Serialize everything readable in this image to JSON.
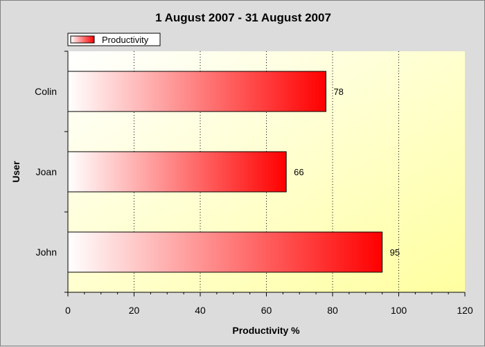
{
  "chart_data": {
    "type": "bar",
    "orientation": "horizontal",
    "title": "1 August 2007 - 31 August 2007",
    "xlabel": "Productivity %",
    "ylabel": "User",
    "categories": [
      "Colin",
      "Joan",
      "John"
    ],
    "series": [
      {
        "name": "Productivity",
        "values": [
          78,
          66,
          95
        ]
      }
    ],
    "xlim": [
      0,
      120
    ],
    "x_ticks": [
      0,
      20,
      40,
      60,
      80,
      100,
      120
    ],
    "x_tick_labels": [
      "0",
      "20",
      "40",
      "60",
      "80",
      "100",
      "120"
    ],
    "grid": "vertical dotted",
    "legend_position": "top-left",
    "data_labels": [
      "78",
      "66",
      "95"
    ],
    "colors": {
      "bar_gradient_start": "#ffffff",
      "bar_gradient_end": "#ff0000",
      "plot_gradient_start": "#ffffff",
      "plot_gradient_end": "#ffffa0",
      "background": "#dcdcdc"
    }
  }
}
